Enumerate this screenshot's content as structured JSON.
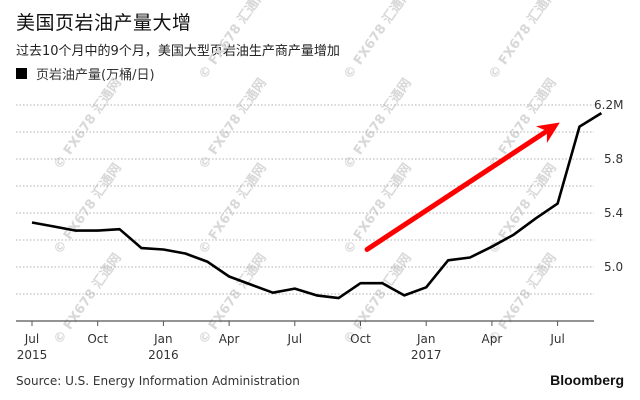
{
  "header": {
    "title": "美国页岩油产量大增",
    "subtitle": "过去10个月中的9个月，美国大型页岩油生产商产量增加",
    "legend_label": "页岩油产量(万桶/日)"
  },
  "footer": {
    "source": "Source: U.S. Energy Information Administration",
    "brand": "Bloomberg"
  },
  "watermark": "© FX678 汇通网",
  "colors": {
    "line": "#000000",
    "arrow": "#ff0000",
    "grid": "#b0b0b0",
    "axis": "#555555"
  },
  "chart_data": {
    "type": "line",
    "title": "美国页岩油产量大增",
    "subtitle": "过去10个月中的9个月，美国大型页岩油生产商产量增加",
    "xlabel": "",
    "ylabel": "页岩油产量(万桶/日)",
    "ylim": [
      4.6,
      6.2
    ],
    "y_ticks": [
      {
        "value": 5.0,
        "label": "5.0"
      },
      {
        "value": 5.4,
        "label": "5.4"
      },
      {
        "value": 5.8,
        "label": "5.8"
      },
      {
        "value": 6.2,
        "label": "6.2M"
      }
    ],
    "grid": true,
    "grid_values": [
      4.8,
      5.0,
      5.2,
      5.4,
      5.6,
      5.8,
      6.0,
      6.2
    ],
    "y_axis_position": "right",
    "legend_position": "top-left",
    "x_ticks": [
      {
        "index": 0,
        "label": "Jul",
        "sublabel": "2015"
      },
      {
        "index": 3,
        "label": "Oct",
        "sublabel": ""
      },
      {
        "index": 6,
        "label": "Jan",
        "sublabel": "2016"
      },
      {
        "index": 9,
        "label": "Apr",
        "sublabel": ""
      },
      {
        "index": 12,
        "label": "Jul",
        "sublabel": ""
      },
      {
        "index": 15,
        "label": "Oct",
        "sublabel": ""
      },
      {
        "index": 18,
        "label": "Jan",
        "sublabel": "2017"
      },
      {
        "index": 21,
        "label": "Apr",
        "sublabel": ""
      },
      {
        "index": 24,
        "label": "Jul",
        "sublabel": ""
      }
    ],
    "categories": [
      "2015-07",
      "2015-08",
      "2015-09",
      "2015-10",
      "2015-11",
      "2015-12",
      "2016-01",
      "2016-02",
      "2016-03",
      "2016-04",
      "2016-05",
      "2016-06",
      "2016-07",
      "2016-08",
      "2016-09",
      "2016-10",
      "2016-11",
      "2016-12",
      "2017-01",
      "2017-02",
      "2017-03",
      "2017-04",
      "2017-05",
      "2017-06",
      "2017-07",
      "2017-08",
      "2017-09"
    ],
    "series": [
      {
        "name": "页岩油产量(万桶/日)",
        "values": [
          5.33,
          5.3,
          5.27,
          5.27,
          5.28,
          5.14,
          5.13,
          5.1,
          5.04,
          4.93,
          4.87,
          4.81,
          4.84,
          4.79,
          4.77,
          4.88,
          4.88,
          4.79,
          4.85,
          5.05,
          5.07,
          5.15,
          5.24,
          5.36,
          5.47,
          6.04,
          6.14
        ]
      }
    ],
    "annotations": [
      {
        "type": "arrow",
        "color": "#ff0000",
        "from": {
          "index": 15.3,
          "value": 5.13
        },
        "to": {
          "index": 24.1,
          "value": 6.07
        }
      }
    ]
  }
}
